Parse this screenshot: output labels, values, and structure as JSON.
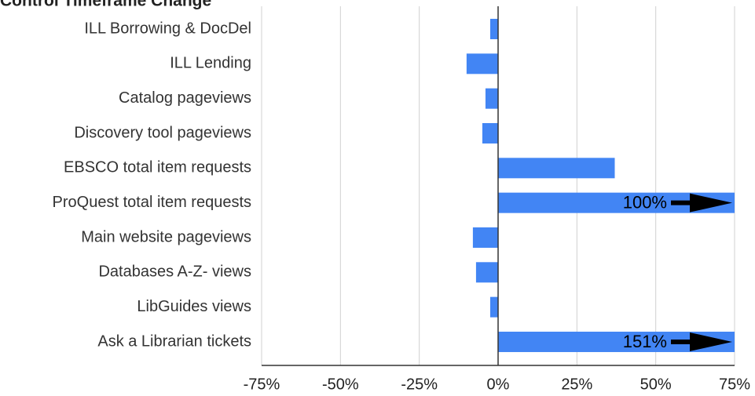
{
  "chart_data": {
    "type": "bar",
    "orientation": "horizontal",
    "title": "Control Timeframe Change",
    "categories": [
      "ILL Borrowing & DocDel",
      "ILL Lending",
      "Catalog pageviews",
      "Discovery tool pageviews",
      "EBSCO total item requests",
      "ProQuest  total item requests",
      "Main website pageviews",
      "Databases A-Z- views",
      "LibGuides views",
      "Ask a Librarian tickets"
    ],
    "values": [
      -2.5,
      -10,
      -4,
      -5,
      37,
      100,
      -8,
      -7,
      -2.5,
      151
    ],
    "value_labels": [
      null,
      null,
      null,
      null,
      null,
      "100%",
      null,
      null,
      null,
      "151%"
    ],
    "color": "#4285f4",
    "xlim": [
      -75,
      75
    ],
    "xticks": [
      {
        "value": -75,
        "label": "-75%"
      },
      {
        "value": -50,
        "label": "-50%"
      },
      {
        "value": -25,
        "label": "-25%"
      },
      {
        "value": 0,
        "label": "0%"
      },
      {
        "value": 25,
        "label": "25%"
      },
      {
        "value": 50,
        "label": "50%"
      },
      {
        "value": 75,
        "label": "75%"
      }
    ],
    "grid": true
  }
}
